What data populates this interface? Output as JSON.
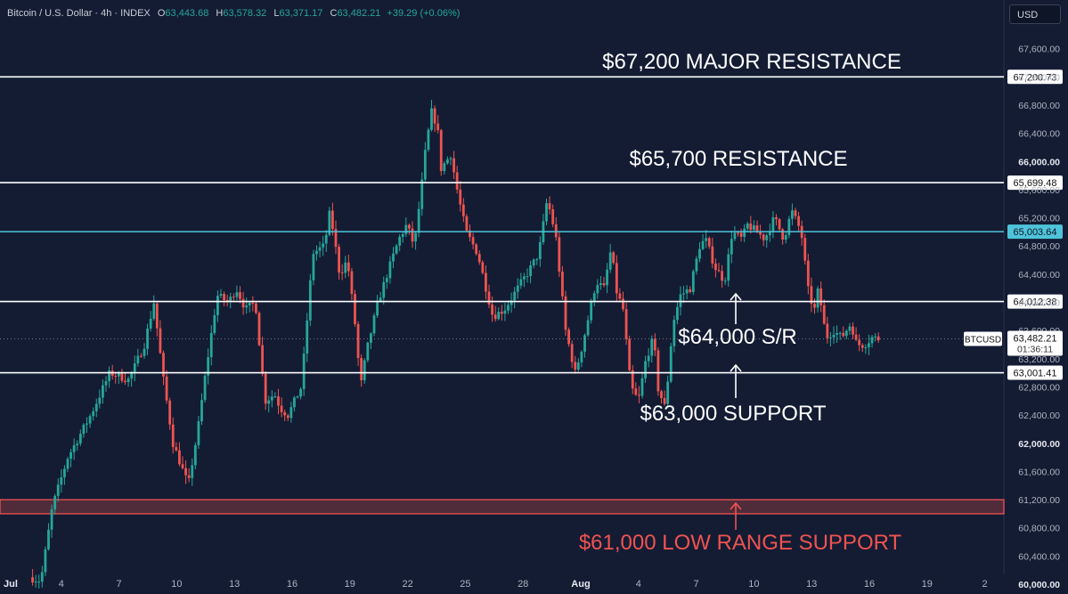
{
  "header": {
    "symbol": "Bitcoin / U.S. Dollar · 4h · INDEX",
    "open_label": "O",
    "open": "63,443.68",
    "high_label": "H",
    "high": "63,578.32",
    "low_label": "L",
    "low": "63,371.17",
    "close_label": "C",
    "close": "63,482.21",
    "change": "+39.29 (+0.06%)"
  },
  "currency_button": "USD",
  "colors": {
    "background": "#131c33",
    "up": "#26a69a",
    "down": "#ef5350",
    "level_line": "#ffffff",
    "level_highlight": "#4fc3d9",
    "support_zone": "#ef5350"
  },
  "chart_data": {
    "type": "candlestick",
    "timeframe": "4h",
    "ylim": [
      59950,
      67950
    ],
    "y_ticks": [
      60000,
      60400,
      60800,
      61200,
      61600,
      62000,
      62400,
      62800,
      63200,
      63600,
      64000,
      64400,
      64800,
      65200,
      65600,
      66000,
      66400,
      66800,
      67200,
      67600
    ],
    "y_tick_labels": [
      "60,000.00",
      "60,400.00",
      "60,800.00",
      "61,200.00",
      "61,600.00",
      "62,000.00",
      "62,400.00",
      "62,800.00",
      "63,200.00",
      "63,600.00",
      "64,000.00",
      "64,400.00",
      "64,800.00",
      "65,200.00",
      "65,600.00",
      "66,000.00",
      "66,400.00",
      "66,800.00",
      "67,200.00",
      "67,600.00"
    ],
    "bold_ticks": [
      "60,000.00",
      "62,000.00",
      "66,000.00"
    ],
    "x_tick_labels": [
      "Jul",
      "4",
      "7",
      "10",
      "13",
      "16",
      "19",
      "22",
      "25",
      "28",
      "Aug",
      "4",
      "7",
      "10",
      "13",
      "16",
      "19",
      "2"
    ],
    "bold_x_labels": [
      "Jul",
      "Aug"
    ],
    "horizontal_levels": [
      {
        "price": 67200.73,
        "label": "67,200.73",
        "highlight": false
      },
      {
        "price": 65699.48,
        "label": "65,699.48",
        "highlight": false
      },
      {
        "price": 65003.64,
        "label": "65,003.64",
        "highlight": true
      },
      {
        "price": 64012.38,
        "label": "64,012.38",
        "highlight": false
      },
      {
        "price": 63001.41,
        "label": "63,001.41",
        "highlight": false
      }
    ],
    "support_zone": {
      "from": 61000,
      "to": 61200
    },
    "annotations": [
      {
        "text": "$67,200 MAJOR RESISTANCE",
        "color": "#ffffff"
      },
      {
        "text": "$65,700 RESISTANCE",
        "color": "#ffffff"
      },
      {
        "text": "$64,000 S/R",
        "color": "#ffffff"
      },
      {
        "text": "$63,000 SUPPORT",
        "color": "#ffffff"
      },
      {
        "text": "$61,000 LOW RANGE SUPPORT",
        "color": "#ef5350"
      }
    ],
    "current_price": {
      "ticker": "BTCUSD",
      "price": 63482.21,
      "label": "63,482.21",
      "countdown": "01:36:11"
    },
    "price_path": {
      "t_days": [
        0,
        0.6,
        1.2,
        2.0,
        3.2,
        4.2,
        5.2,
        6.0,
        6.5,
        7.0,
        7.5,
        8.3,
        8.8,
        9.2,
        9.8,
        10.4,
        10.8,
        11.3,
        11.8,
        12.3,
        12.8,
        13.1,
        13.5,
        14.2,
        14.8,
        15.4,
        15.7,
        16.2,
        16.6,
        17.0,
        17.3,
        17.6,
        18.2,
        18.8,
        19.3,
        19.7,
        20.1,
        20.5,
        20.7,
        21.0,
        21.3,
        21.5,
        22.0,
        22.4,
        22.8,
        23.4,
        24.2,
        24.8,
        25.5,
        26.2,
        26.6,
        27.0,
        27.2,
        27.5,
        28.0,
        28.5,
        28.8,
        29.2,
        29.6,
        30.0,
        30.4,
        30.6,
        31.0,
        31.4,
        31.8,
        32.2,
        32.6,
        32.8,
        33.2,
        33.6,
        34.0,
        34.5,
        35.0,
        35.3,
        35.8,
        36.3,
        36.7,
        37.2,
        37.5,
        38.0,
        38.4,
        38.9,
        39.4,
        39.8,
        40.3,
        40.7,
        41.0,
        41.2,
        41.6,
        42.0,
        42.4,
        42.9,
        43.2,
        43.6,
        44.0,
        44.4
      ],
      "close": [
        60100,
        60050,
        61100,
        61800,
        62400,
        63000,
        62900,
        63400,
        64000,
        62900,
        62000,
        61400,
        62200,
        63000,
        64100,
        64000,
        64200,
        63900,
        64000,
        62600,
        62700,
        62500,
        62400,
        62800,
        64700,
        64800,
        65300,
        64400,
        64600,
        63700,
        62800,
        63300,
        64000,
        64500,
        64900,
        65100,
        64800,
        65700,
        66200,
        66700,
        66500,
        65900,
        66100,
        65500,
        65000,
        64700,
        63800,
        63900,
        64200,
        64500,
        64700,
        65400,
        65300,
        64900,
        63600,
        63000,
        63300,
        63800,
        64300,
        64200,
        64800,
        64200,
        63900,
        62800,
        62600,
        63200,
        63500,
        62800,
        62500,
        63700,
        64100,
        64200,
        64800,
        64900,
        64500,
        64300,
        65000,
        64900,
        65100,
        65000,
        64900,
        65200,
        64900,
        65300,
        65000,
        64100,
        63900,
        64200,
        63500,
        63600,
        63500,
        63700,
        63400,
        63400,
        63500,
        63482
      ]
    }
  }
}
